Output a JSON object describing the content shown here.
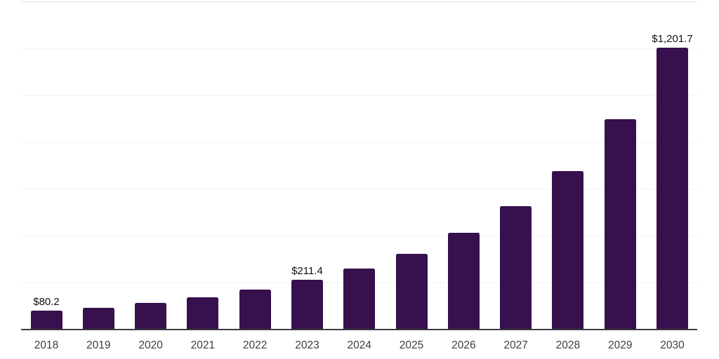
{
  "chart_data": {
    "type": "bar",
    "title": "",
    "xlabel": "",
    "ylabel": "",
    "categories": [
      "2018",
      "2019",
      "2020",
      "2021",
      "2022",
      "2023",
      "2024",
      "2025",
      "2026",
      "2027",
      "2028",
      "2029",
      "2030"
    ],
    "values": [
      80.2,
      93,
      114,
      138,
      171,
      211.4,
      261,
      324,
      414,
      527,
      676,
      898,
      1201.7
    ],
    "data_labels": {
      "2018": "$80.2",
      "2023": "$211.4",
      "2030": "$1,201.7"
    },
    "ylim": [
      0,
      1400
    ],
    "gridline_step": 200,
    "grid": "horizontal-only",
    "y_tick_labels_visible": false,
    "legend": "none",
    "bar_color": "#37104e",
    "axis_line_color": "#3b3b3b",
    "gridline_color": "#f4f4f4",
    "plot_top_border_color": "#e2e2e2",
    "tick_label_color": "#3d3d3d",
    "value_label_color": "#111111"
  }
}
